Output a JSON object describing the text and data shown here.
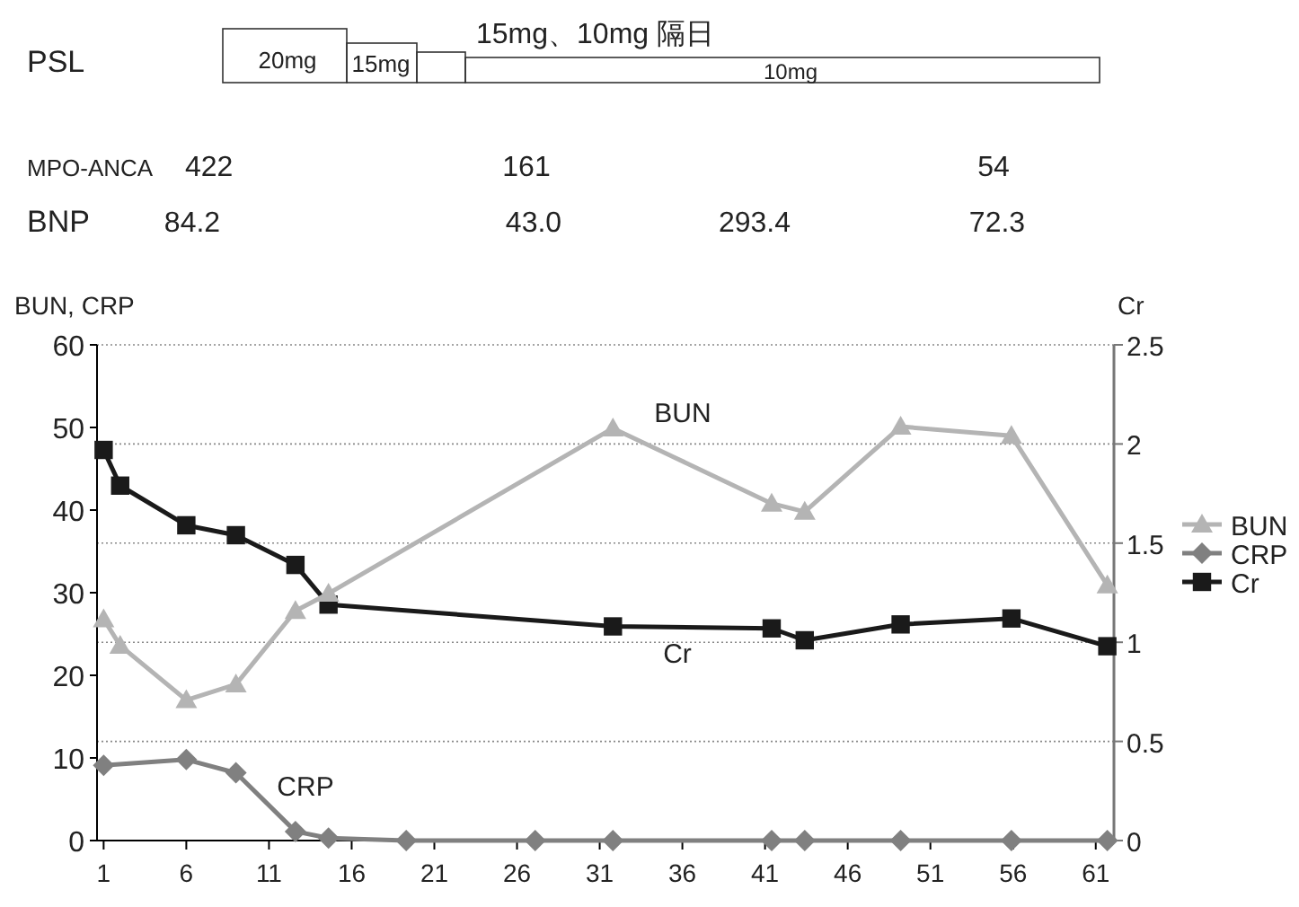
{
  "chart_data": {
    "type": "line",
    "xlabel": null,
    "ylabel": "BUN, CRP",
    "y2label": "Cr",
    "xlim": [
      0.6,
      62.1
    ],
    "xticks": [
      1,
      6,
      11,
      16,
      21,
      26,
      31,
      36,
      41,
      46,
      51,
      56,
      61
    ],
    "ylim": [
      0,
      60
    ],
    "yticks": [
      0,
      10,
      20,
      30,
      40,
      50,
      60
    ],
    "y2lim": [
      0,
      2.5
    ],
    "y2ticks": [
      0,
      {
        "value": 0.5,
        "label": "0.5"
      },
      1,
      {
        "value": 1.5,
        "label": "1.5"
      },
      2,
      {
        "value": 2.5,
        "label": "2.5"
      }
    ],
    "grid": "y",
    "legend": "right",
    "series": [
      {
        "name": "BUN",
        "color": "#b4b4b4",
        "marker": "triangle",
        "x": [
          1,
          2,
          6,
          9,
          12.6,
          14.6,
          31.8,
          41.4,
          43.4,
          49.2,
          55.9,
          61.7
        ],
        "values": [
          26.8,
          23.6,
          17.0,
          18.9,
          27.8,
          29.9,
          49.9,
          40.8,
          39.8,
          50.1,
          49.0,
          30.9
        ]
      },
      {
        "name": "CRP",
        "color": "#808080",
        "marker": "diamond",
        "x": [
          1,
          6,
          9,
          12.6,
          14.6,
          19.3,
          27.1,
          31.8,
          41.4,
          43.4,
          49.2,
          55.9,
          61.7
        ],
        "values": [
          9.1,
          9.8,
          8.2,
          1.1,
          0.3,
          0,
          0,
          0,
          0,
          0,
          0,
          0,
          0
        ]
      },
      {
        "name": "Cr",
        "color": "#1a1a1a",
        "marker": "square",
        "axis": "y2",
        "x": [
          1,
          2,
          6,
          9,
          12.6,
          14.6,
          31.8,
          41.4,
          43.4,
          49.2,
          55.9,
          61.7
        ],
        "values": [
          1.97,
          1.79,
          1.59,
          1.54,
          1.39,
          1.19,
          1.08,
          1.07,
          1.01,
          1.09,
          1.12,
          0.98
        ]
      }
    ],
    "annotations": [
      "PSL",
      "20mg",
      "15mg",
      "15mg、10mg 隔日",
      "10mg",
      "MPO-ANCA",
      "422",
      "161",
      "54",
      "BNP",
      "84.2",
      "43.0",
      "293.4",
      "72.3",
      "BUN",
      "Cr",
      "CRP"
    ]
  }
}
